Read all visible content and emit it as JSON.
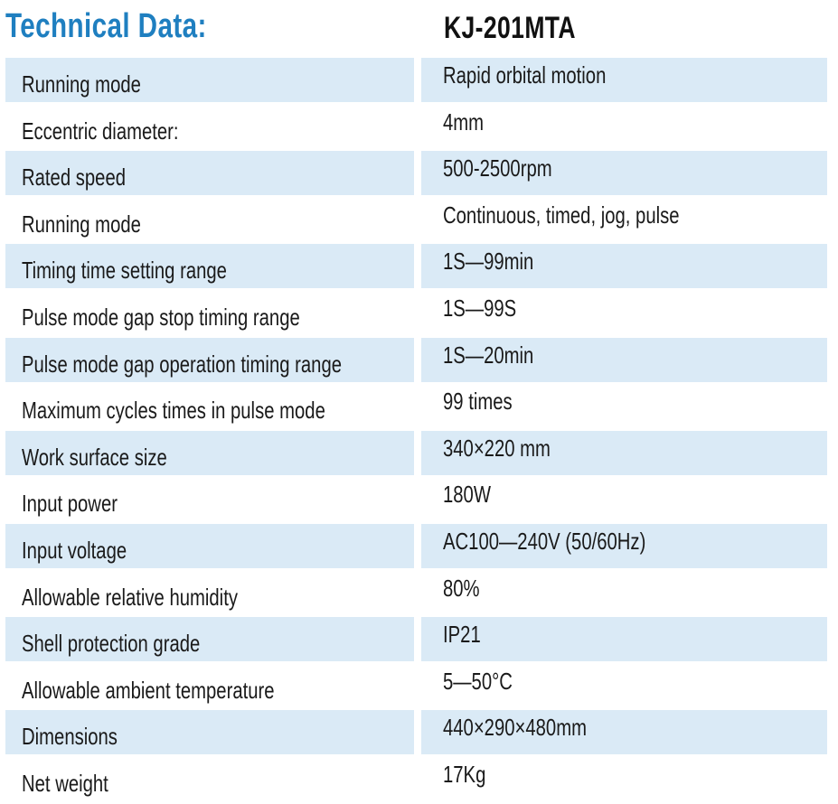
{
  "header": {
    "title": "Technical Data:",
    "model": "KJ-201MTA"
  },
  "colors": {
    "title": "#1f7fc0",
    "row_shade": "#daeaf6",
    "text": "#1a1a1a"
  },
  "rows": [
    {
      "label": "Running mode",
      "value": "Rapid orbital motion"
    },
    {
      "label": "Eccentric diameter:",
      "value": "4mm"
    },
    {
      "label": "Rated speed",
      "value": "500-2500rpm"
    },
    {
      "label": "Running mode",
      "value": "Continuous, timed, jog, pulse"
    },
    {
      "label": "Timing time setting range",
      "value": "1S—99min"
    },
    {
      "label": "Pulse mode gap stop timing range",
      "value": "1S—99S"
    },
    {
      "label": "Pulse mode gap operation timing range",
      "value": "1S—20min"
    },
    {
      "label": "Maximum cycles times in pulse mode",
      "value": "99 times"
    },
    {
      "label": "Work surface size",
      "value": "340×220 mm"
    },
    {
      "label": "Input power",
      "value": "180W"
    },
    {
      "label": "Input voltage",
      "value": "AC100—240V (50/60Hz)"
    },
    {
      "label": "Allowable relative humidity",
      "value": "80%"
    },
    {
      "label": "Shell protection grade",
      "value": "IP21"
    },
    {
      "label": "Allowable ambient temperature",
      "value": "5—50°C"
    },
    {
      "label": "Dimensions",
      "value": "440×290×480mm"
    },
    {
      "label": "Net weight",
      "value": "17Kg"
    }
  ]
}
